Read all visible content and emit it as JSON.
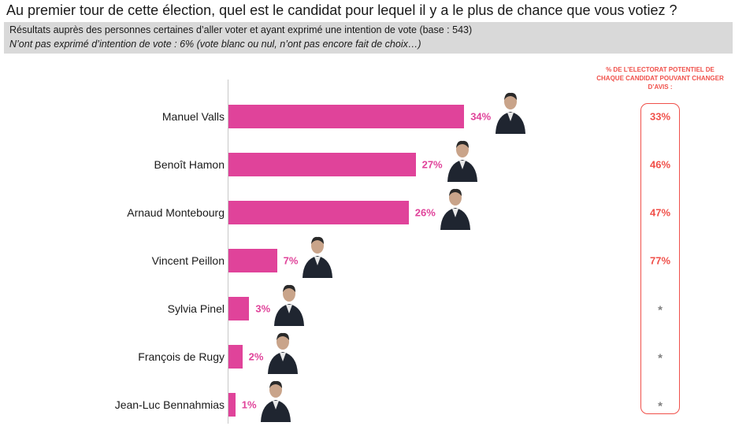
{
  "title": "Au premier tour de cette élection, quel est le candidat pour lequel il y a le plus de chance que vous votiez ?",
  "subtitle_line1": "Résultats auprès des personnes certaines d’aller voter et ayant exprimé une intention de vote (base : 543)",
  "subtitle_line2": "N’ont pas exprimé d’intention de vote : 6% (vote blanc ou nul, n’ont pas encore fait de choix…)",
  "side_header": "% DE L’ELECTORAT POTENTIEL DE CHAQUE CANDIDAT POUVANT CHANGER D’AVIS :",
  "colors": {
    "bar": "#e0439a",
    "side": "#f0504a",
    "star": "#7f7f7f"
  },
  "chart_data": {
    "type": "bar",
    "orientation": "horizontal",
    "title": "Au premier tour de cette élection, quel est le candidat pour lequel il y a le plus de chance que vous votiez ?",
    "categories": [
      "Manuel Valls",
      "Benoît Hamon",
      "Arnaud Montebourg",
      "Vincent Peillon",
      "Sylvia Pinel",
      "François de Rugy",
      "Jean-Luc Bennahmias"
    ],
    "values": [
      34,
      27,
      26,
      7,
      3,
      2,
      1
    ],
    "value_labels": [
      "34%",
      "27%",
      "26%",
      "7%",
      "3%",
      "2%",
      "1%"
    ],
    "xlim": [
      0,
      100
    ],
    "unit": "%",
    "change_mind": [
      "33%",
      "46%",
      "47%",
      "77%",
      "*",
      "*",
      "*"
    ],
    "photo_icons": [
      "person-photo-icon",
      "person-photo-icon",
      "person-photo-icon",
      "person-photo-icon",
      "person-photo-icon",
      "person-photo-icon",
      "person-photo-icon"
    ]
  }
}
